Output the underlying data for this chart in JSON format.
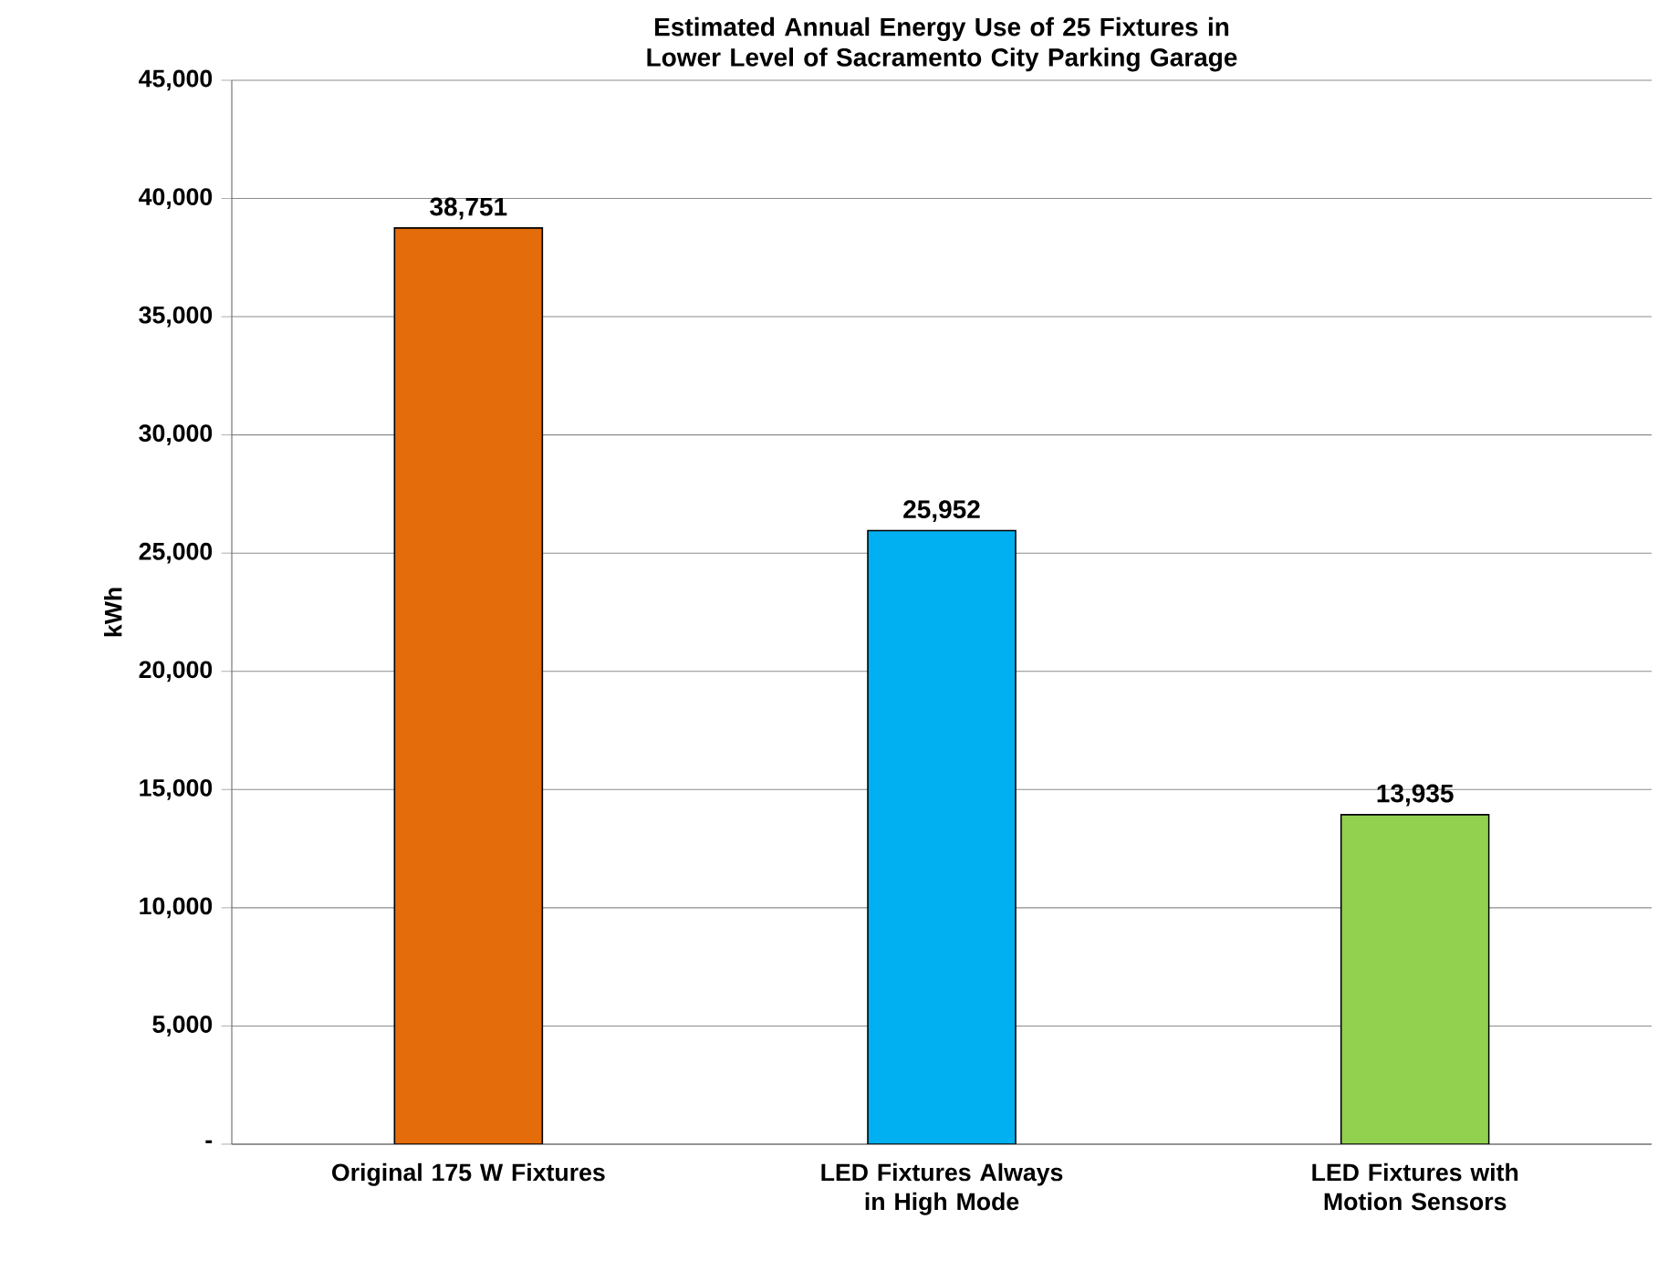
{
  "chart_data": {
    "type": "bar",
    "title": "Estimated Annual Energy Use of 25 Fixtures in Lower Level of Sacramento City Parking Garage",
    "ylabel": "kWh",
    "categories": [
      "Original 175 W Fixtures",
      "LED Fixtures Always in High Mode",
      "LED Fixtures with Motion Sensors"
    ],
    "values": [
      38751,
      25952,
      13935
    ],
    "value_labels": [
      "38,751",
      "25,952",
      "13,935"
    ],
    "colors": [
      "#e46c0a",
      "#00b0f0",
      "#92d050"
    ],
    "ylim": [
      0,
      45000
    ],
    "yticks": [
      {
        "value": 0,
        "label": "-"
      },
      {
        "value": 5000,
        "label": "5,000"
      },
      {
        "value": 10000,
        "label": "10,000"
      },
      {
        "value": 15000,
        "label": "15,000"
      },
      {
        "value": 20000,
        "label": "20,000"
      },
      {
        "value": 25000,
        "label": "25,000"
      },
      {
        "value": 30000,
        "label": "30,000"
      },
      {
        "value": 35000,
        "label": "35,000"
      },
      {
        "value": 40000,
        "label": "40,000"
      },
      {
        "value": 45000,
        "label": "45,000"
      }
    ],
    "grid": "y"
  }
}
